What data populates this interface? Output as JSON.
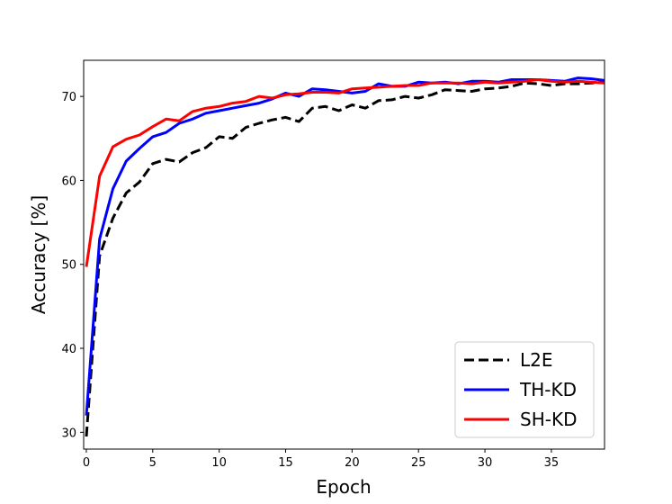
{
  "chart_data": {
    "type": "line",
    "xlabel": "Epoch",
    "ylabel": "Accuracy [%]",
    "xlim": [
      -0.2,
      39
    ],
    "ylim": [
      28,
      74.3
    ],
    "xticks": [
      0,
      5,
      10,
      15,
      20,
      25,
      30,
      35
    ],
    "yticks": [
      30,
      40,
      50,
      60,
      70
    ],
    "grid": false,
    "legend_position": "lower-right",
    "x": [
      0,
      1,
      2,
      3,
      4,
      5,
      6,
      7,
      8,
      9,
      10,
      11,
      12,
      13,
      14,
      15,
      16,
      17,
      18,
      19,
      20,
      21,
      22,
      23,
      24,
      25,
      26,
      27,
      28,
      29,
      30,
      31,
      32,
      33,
      34,
      35,
      36,
      37,
      38,
      39
    ],
    "series": [
      {
        "name": "L2E",
        "color": "#000000",
        "dash": "dashed",
        "values": [
          29.5,
          51.0,
          55.5,
          58.5,
          59.8,
          62.0,
          62.5,
          62.2,
          63.3,
          63.9,
          65.2,
          65.0,
          66.3,
          66.8,
          67.2,
          67.5,
          67.0,
          68.6,
          68.8,
          68.3,
          69.0,
          68.6,
          69.5,
          69.6,
          70.0,
          69.8,
          70.2,
          70.8,
          70.7,
          70.6,
          70.9,
          71.0,
          71.2,
          71.6,
          71.5,
          71.3,
          71.5,
          71.5,
          71.6,
          71.7
        ]
      },
      {
        "name": "TH-KD",
        "color": "#0000ff",
        "dash": "solid",
        "values": [
          32.0,
          53.0,
          59.0,
          62.3,
          63.8,
          65.2,
          65.7,
          66.8,
          67.3,
          68.0,
          68.3,
          68.6,
          68.9,
          69.2,
          69.7,
          70.4,
          70.0,
          70.9,
          70.8,
          70.6,
          70.4,
          70.6,
          71.5,
          71.2,
          71.2,
          71.7,
          71.6,
          71.7,
          71.5,
          71.8,
          71.8,
          71.7,
          72.0,
          72.0,
          72.0,
          71.9,
          71.8,
          72.2,
          72.1,
          71.9
        ]
      },
      {
        "name": "SH-KD",
        "color": "#ff0000",
        "dash": "solid",
        "values": [
          49.7,
          60.5,
          64.0,
          64.9,
          65.4,
          66.4,
          67.3,
          67.1,
          68.2,
          68.6,
          68.8,
          69.2,
          69.4,
          70.0,
          69.8,
          70.2,
          70.3,
          70.5,
          70.5,
          70.4,
          70.9,
          71.0,
          71.1,
          71.2,
          71.3,
          71.3,
          71.6,
          71.6,
          71.6,
          71.5,
          71.7,
          71.6,
          71.7,
          71.8,
          72.0,
          71.8,
          71.7,
          71.8,
          71.7,
          71.6
        ]
      }
    ]
  }
}
